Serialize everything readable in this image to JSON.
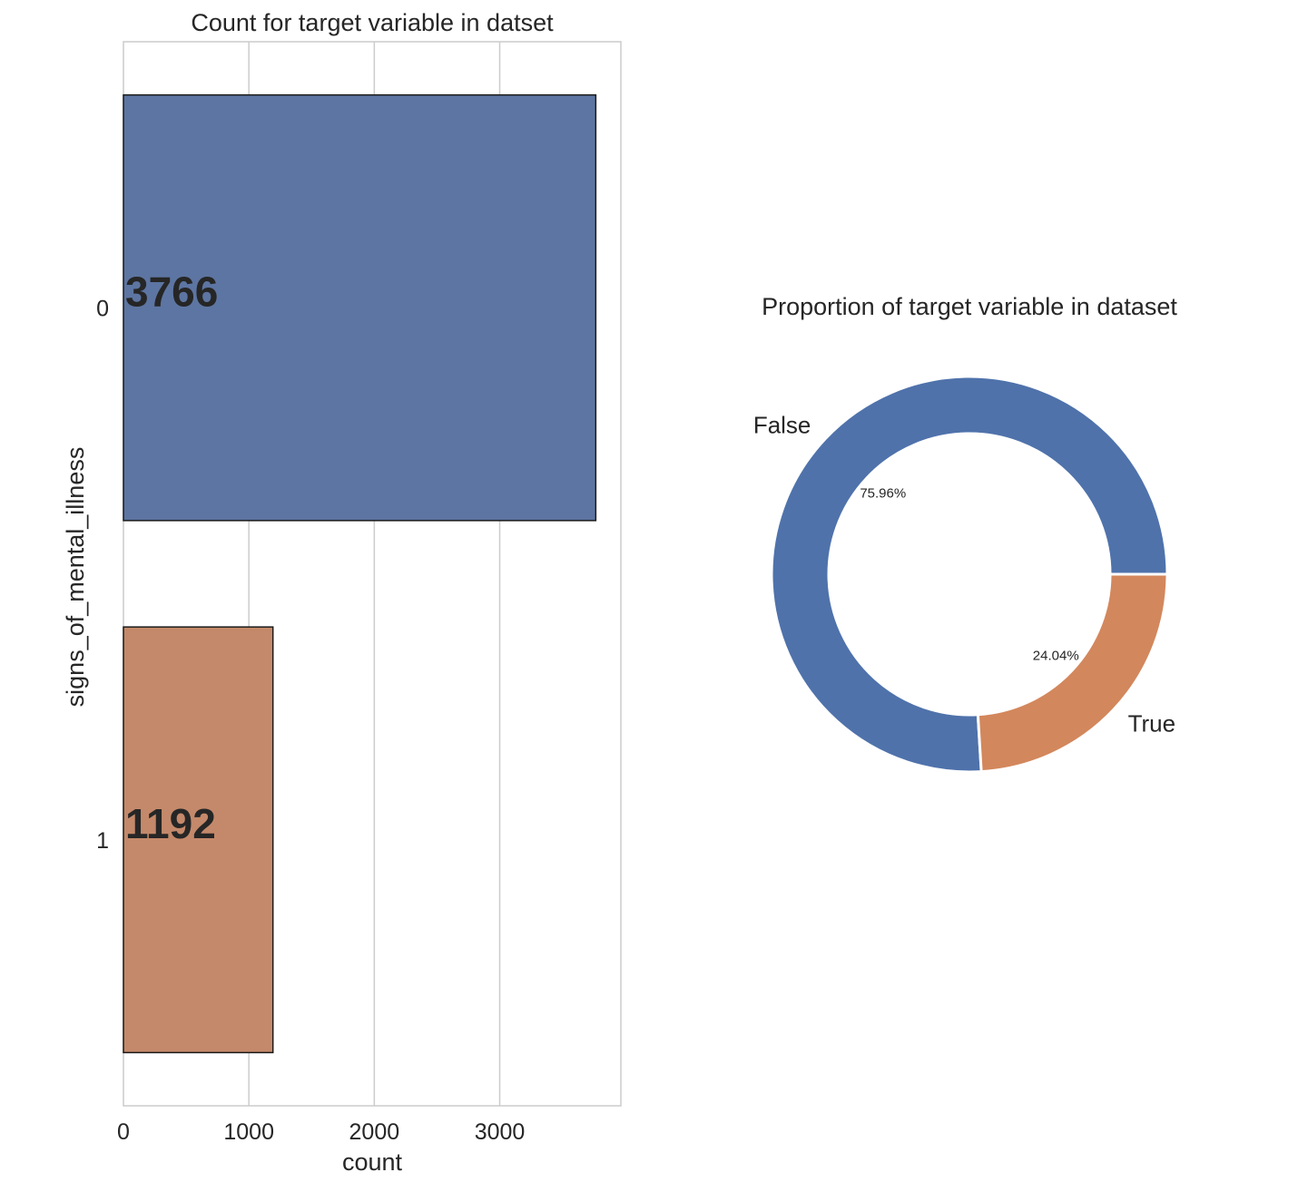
{
  "chart_data": [
    {
      "type": "bar",
      "orientation": "horizontal",
      "title": "Count for target variable in datset",
      "xlabel": "count",
      "ylabel": "signs_of_mental_illness",
      "categories": [
        "0",
        "1"
      ],
      "values": [
        3766,
        1192
      ],
      "value_labels": [
        "3766",
        "1192"
      ],
      "xlim": [
        0,
        3966
      ],
      "xticks": [
        0,
        1000,
        2000,
        3000
      ],
      "xtick_labels": [
        "0",
        "1000",
        "2000",
        "3000"
      ],
      "grid": "vertical",
      "colors": [
        "#5d75a2",
        "#c4896a"
      ]
    },
    {
      "type": "pie",
      "style": "donut",
      "title": "Proportion of target variable in dataset",
      "labels": [
        "False",
        "True"
      ],
      "values": [
        75.96,
        24.04
      ],
      "value_labels": [
        "75.96%",
        "24.04%"
      ],
      "colors": [
        "#4f72ab",
        "#d3875c"
      ]
    }
  ]
}
